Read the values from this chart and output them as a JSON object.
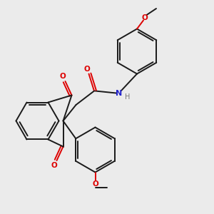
{
  "bg_color": "#ebebeb",
  "line_color": "#1a1a1a",
  "o_color": "#dd0000",
  "n_color": "#2222cc",
  "h_color": "#777777",
  "lw": 1.4,
  "figsize": [
    3.0,
    3.0
  ],
  "dpi": 100,
  "xlim": [
    0,
    10
  ],
  "ylim": [
    0,
    10
  ]
}
